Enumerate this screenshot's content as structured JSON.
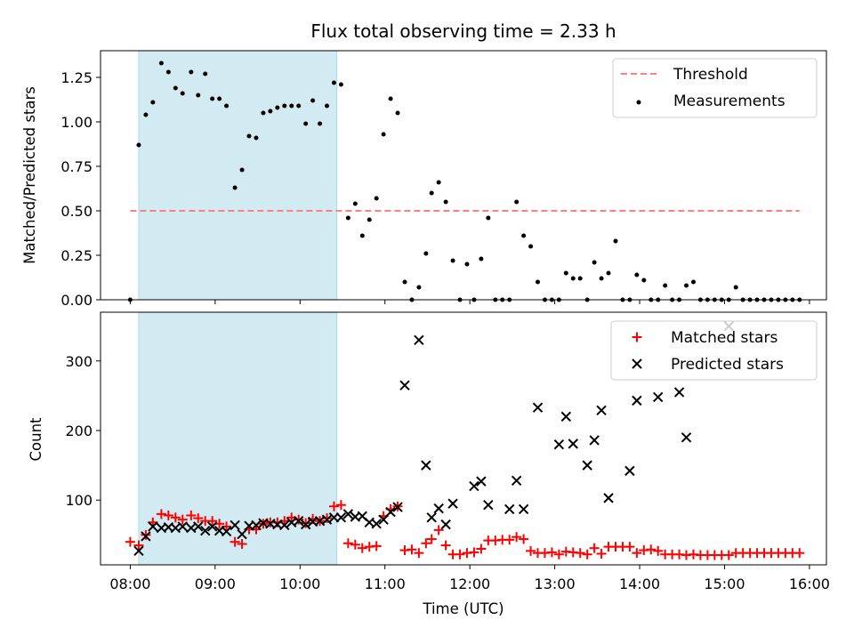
{
  "colors": {
    "shade": "#add8e6",
    "threshold": "#ff7f7f",
    "measurement": "#000000",
    "matched": "#ff0000",
    "predicted": "#000000",
    "legend_border": "#cccccc"
  },
  "chart_data": [
    {
      "type": "scatter",
      "title": "Flux total observing time = 2.33 h",
      "xlabel": "",
      "ylabel": "Matched/Predicted stars",
      "xlim": [
        "07:39",
        "16:12"
      ],
      "ylim": [
        0,
        1.4
      ],
      "yticks": [
        0.0,
        0.25,
        0.5,
        0.75,
        1.0,
        1.25
      ],
      "ytick_labels": [
        "0.00",
        "0.25",
        "0.50",
        "0.75",
        "1.00",
        "1.25"
      ],
      "shaded_span": [
        "08:06",
        "10:26"
      ],
      "grid": false,
      "legend_position": "upper right",
      "threshold": {
        "name": "Threshold",
        "y": 0.5,
        "x_range": [
          "08:00",
          "15:53"
        ]
      },
      "series": [
        {
          "name": "Measurements",
          "points": [
            [
              "08:00",
              0.0
            ],
            [
              "08:06",
              0.87
            ],
            [
              "08:11",
              1.04
            ],
            [
              "08:16",
              1.11
            ],
            [
              "08:22",
              1.33
            ],
            [
              "08:27",
              1.28
            ],
            [
              "08:32",
              1.19
            ],
            [
              "08:37",
              1.16
            ],
            [
              "08:43",
              1.28
            ],
            [
              "08:48",
              1.15
            ],
            [
              "08:53",
              1.27
            ],
            [
              "08:58",
              1.13
            ],
            [
              "09:03",
              1.13
            ],
            [
              "09:08",
              1.09
            ],
            [
              "09:14",
              0.63
            ],
            [
              "09:19",
              0.73
            ],
            [
              "09:24",
              0.92
            ],
            [
              "09:29",
              0.91
            ],
            [
              "09:34",
              1.05
            ],
            [
              "09:39",
              1.06
            ],
            [
              "09:44",
              1.08
            ],
            [
              "09:49",
              1.09
            ],
            [
              "09:54",
              1.09
            ],
            [
              "09:59",
              1.09
            ],
            [
              "10:04",
              0.99
            ],
            [
              "10:09",
              1.12
            ],
            [
              "10:14",
              0.99
            ],
            [
              "10:19",
              1.09
            ],
            [
              "10:24",
              1.22
            ],
            [
              "10:29",
              1.21
            ],
            [
              "10:34",
              0.46
            ],
            [
              "10:39",
              0.54
            ],
            [
              "10:44",
              0.36
            ],
            [
              "10:49",
              0.45
            ],
            [
              "10:54",
              0.57
            ],
            [
              "10:59",
              0.93
            ],
            [
              "11:04",
              1.13
            ],
            [
              "11:09",
              1.05
            ],
            [
              "11:14",
              0.1
            ],
            [
              "11:19",
              0.0
            ],
            [
              "11:24",
              0.07
            ],
            [
              "11:29",
              0.26
            ],
            [
              "11:33",
              0.6
            ],
            [
              "11:38",
              0.66
            ],
            [
              "11:43",
              0.55
            ],
            [
              "11:48",
              0.22
            ],
            [
              "11:53",
              0.0
            ],
            [
              "11:58",
              0.2
            ],
            [
              "12:03",
              0.0
            ],
            [
              "12:08",
              0.23
            ],
            [
              "12:13",
              0.46
            ],
            [
              "12:18",
              0.0
            ],
            [
              "12:23",
              0.0
            ],
            [
              "12:28",
              0.0
            ],
            [
              "12:33",
              0.55
            ],
            [
              "12:38",
              0.36
            ],
            [
              "12:43",
              0.3
            ],
            [
              "12:48",
              0.1
            ],
            [
              "12:53",
              0.0
            ],
            [
              "12:58",
              0.0
            ],
            [
              "13:03",
              0.0
            ],
            [
              "13:08",
              0.15
            ],
            [
              "13:13",
              0.12
            ],
            [
              "13:18",
              0.12
            ],
            [
              "13:23",
              0.0
            ],
            [
              "13:28",
              0.21
            ],
            [
              "13:33",
              0.12
            ],
            [
              "13:38",
              0.15
            ],
            [
              "13:43",
              0.33
            ],
            [
              "13:48",
              0.0
            ],
            [
              "13:53",
              0.0
            ],
            [
              "13:58",
              0.14
            ],
            [
              "14:03",
              0.11
            ],
            [
              "14:08",
              0.0
            ],
            [
              "14:13",
              0.0
            ],
            [
              "14:18",
              0.08
            ],
            [
              "14:23",
              0.0
            ],
            [
              "14:28",
              0.0
            ],
            [
              "14:33",
              0.08
            ],
            [
              "14:38",
              0.1
            ],
            [
              "14:43",
              0.0
            ],
            [
              "14:48",
              0.0
            ],
            [
              "14:53",
              0.0
            ],
            [
              "14:58",
              0.0
            ],
            [
              "15:03",
              0.0
            ],
            [
              "15:08",
              0.07
            ],
            [
              "15:13",
              0.0
            ],
            [
              "15:18",
              0.0
            ],
            [
              "15:23",
              0.0
            ],
            [
              "15:28",
              0.0
            ],
            [
              "15:33",
              0.0
            ],
            [
              "15:38",
              0.0
            ],
            [
              "15:43",
              0.0
            ],
            [
              "15:48",
              0.0
            ],
            [
              "15:53",
              0.0
            ]
          ]
        }
      ]
    },
    {
      "type": "scatter",
      "title": "",
      "xlabel": "Time (UTC)",
      "ylabel": "Count",
      "xlim": [
        "07:39",
        "16:12"
      ],
      "ylim": [
        7,
        370
      ],
      "yticks": [
        100,
        200,
        300
      ],
      "ytick_labels": [
        "100",
        "200",
        "300"
      ],
      "xticks": [
        "08:00",
        "09:00",
        "10:00",
        "11:00",
        "12:00",
        "13:00",
        "14:00",
        "15:00",
        "16:00"
      ],
      "xtick_labels": [
        "08:00",
        "09:00",
        "10:00",
        "11:00",
        "12:00",
        "13:00",
        "14:00",
        "15:00",
        "16:00"
      ],
      "shaded_span": [
        "08:06",
        "10:26"
      ],
      "grid": false,
      "legend_position": "upper right",
      "series": [
        {
          "name": "Matched stars",
          "marker": "plus",
          "points": [
            [
              "08:00",
              40
            ],
            [
              "08:06",
              35
            ],
            [
              "08:11",
              50
            ],
            [
              "08:16",
              68
            ],
            [
              "08:22",
              80
            ],
            [
              "08:27",
              78
            ],
            [
              "08:32",
              75
            ],
            [
              "08:37",
              72
            ],
            [
              "08:43",
              78
            ],
            [
              "08:48",
              74
            ],
            [
              "08:53",
              70
            ],
            [
              "08:58",
              70
            ],
            [
              "09:03",
              66
            ],
            [
              "09:08",
              62
            ],
            [
              "09:14",
              40
            ],
            [
              "09:19",
              37
            ],
            [
              "09:24",
              58
            ],
            [
              "09:29",
              58
            ],
            [
              "09:34",
              66
            ],
            [
              "09:39",
              68
            ],
            [
              "09:44",
              68
            ],
            [
              "09:49",
              70
            ],
            [
              "09:54",
              75
            ],
            [
              "09:59",
              72
            ],
            [
              "10:04",
              67
            ],
            [
              "10:09",
              73
            ],
            [
              "10:14",
              70
            ],
            [
              "10:19",
              74
            ],
            [
              "10:24",
              91
            ],
            [
              "10:29",
              93
            ],
            [
              "10:34",
              38
            ],
            [
              "10:39",
              36
            ],
            [
              "10:44",
              31
            ],
            [
              "10:49",
              33
            ],
            [
              "10:54",
              34
            ],
            [
              "10:59",
              77
            ],
            [
              "11:04",
              87
            ],
            [
              "11:09",
              91
            ],
            [
              "11:14",
              28
            ],
            [
              "11:19",
              29
            ],
            [
              "11:24",
              24
            ],
            [
              "11:29",
              38
            ],
            [
              "11:33",
              44
            ],
            [
              "11:38",
              57
            ],
            [
              "11:43",
              35
            ],
            [
              "11:48",
              22
            ],
            [
              "11:53",
              22
            ],
            [
              "11:58",
              24
            ],
            [
              "12:03",
              25
            ],
            [
              "12:08",
              30
            ],
            [
              "12:13",
              42
            ],
            [
              "12:18",
              42
            ],
            [
              "12:23",
              43
            ],
            [
              "12:28",
              43
            ],
            [
              "12:33",
              47
            ],
            [
              "12:38",
              44
            ],
            [
              "12:43",
              27
            ],
            [
              "12:48",
              24
            ],
            [
              "12:53",
              24
            ],
            [
              "12:58",
              25
            ],
            [
              "13:03",
              22
            ],
            [
              "13:08",
              26
            ],
            [
              "13:13",
              25
            ],
            [
              "13:18",
              24
            ],
            [
              "13:23",
              22
            ],
            [
              "13:28",
              31
            ],
            [
              "13:33",
              23
            ],
            [
              "13:38",
              33
            ],
            [
              "13:43",
              33
            ],
            [
              "13:48",
              33
            ],
            [
              "13:53",
              33
            ],
            [
              "13:58",
              24
            ],
            [
              "14:03",
              28
            ],
            [
              "14:08",
              29
            ],
            [
              "14:13",
              27
            ],
            [
              "14:18",
              22
            ],
            [
              "14:23",
              22
            ],
            [
              "14:28",
              22
            ],
            [
              "14:33",
              21
            ],
            [
              "14:38",
              22
            ],
            [
              "14:43",
              21
            ],
            [
              "14:48",
              21
            ],
            [
              "14:53",
              21
            ],
            [
              "14:58",
              21
            ],
            [
              "15:03",
              21
            ],
            [
              "15:08",
              24
            ],
            [
              "15:13",
              24
            ],
            [
              "15:18",
              24
            ],
            [
              "15:23",
              24
            ],
            [
              "15:28",
              24
            ],
            [
              "15:33",
              24
            ],
            [
              "15:38",
              24
            ],
            [
              "15:43",
              24
            ],
            [
              "15:48",
              24
            ],
            [
              "15:53",
              24
            ]
          ]
        },
        {
          "name": "Predicted stars",
          "marker": "x",
          "points": [
            [
              "08:06",
              27
            ],
            [
              "08:11",
              48
            ],
            [
              "08:16",
              62
            ],
            [
              "08:22",
              60
            ],
            [
              "08:27",
              61
            ],
            [
              "08:32",
              60
            ],
            [
              "08:37",
              62
            ],
            [
              "08:43",
              60
            ],
            [
              "08:48",
              62
            ],
            [
              "08:53",
              56
            ],
            [
              "08:58",
              62
            ],
            [
              "09:03",
              56
            ],
            [
              "09:08",
              55
            ],
            [
              "09:14",
              64
            ],
            [
              "09:19",
              51
            ],
            [
              "09:24",
              63
            ],
            [
              "09:29",
              64
            ],
            [
              "09:34",
              67
            ],
            [
              "09:39",
              66
            ],
            [
              "09:44",
              65
            ],
            [
              "09:49",
              64
            ],
            [
              "09:54",
              68
            ],
            [
              "09:59",
              70
            ],
            [
              "10:04",
              65
            ],
            [
              "10:09",
              69
            ],
            [
              "10:14",
              70
            ],
            [
              "10:19",
              72
            ],
            [
              "10:24",
              75
            ],
            [
              "10:29",
              75
            ],
            [
              "10:34",
              80
            ],
            [
              "10:39",
              76
            ],
            [
              "10:44",
              77
            ],
            [
              "10:49",
              68
            ],
            [
              "10:54",
              66
            ],
            [
              "10:59",
              72
            ],
            [
              "11:04",
              83
            ],
            [
              "11:09",
              90
            ],
            [
              "11:14",
              265
            ],
            [
              "11:24",
              330
            ],
            [
              "11:29",
              150
            ],
            [
              "11:33",
              75
            ],
            [
              "11:38",
              88
            ],
            [
              "11:43",
              65
            ],
            [
              "11:48",
              95
            ],
            [
              "12:03",
              120
            ],
            [
              "12:08",
              127
            ],
            [
              "12:13",
              93
            ],
            [
              "12:28",
              87
            ],
            [
              "12:33",
              128
            ],
            [
              "12:38",
              87
            ],
            [
              "12:48",
              233
            ],
            [
              "13:03",
              180
            ],
            [
              "13:08",
              220
            ],
            [
              "13:13",
              181
            ],
            [
              "13:23",
              150
            ],
            [
              "13:28",
              186
            ],
            [
              "13:33",
              229
            ],
            [
              "13:38",
              103
            ],
            [
              "13:53",
              142
            ],
            [
              "13:58",
              243
            ],
            [
              "14:13",
              248
            ],
            [
              "14:28",
              255
            ],
            [
              "14:33",
              190
            ],
            [
              "15:03",
              350
            ]
          ]
        }
      ]
    }
  ]
}
